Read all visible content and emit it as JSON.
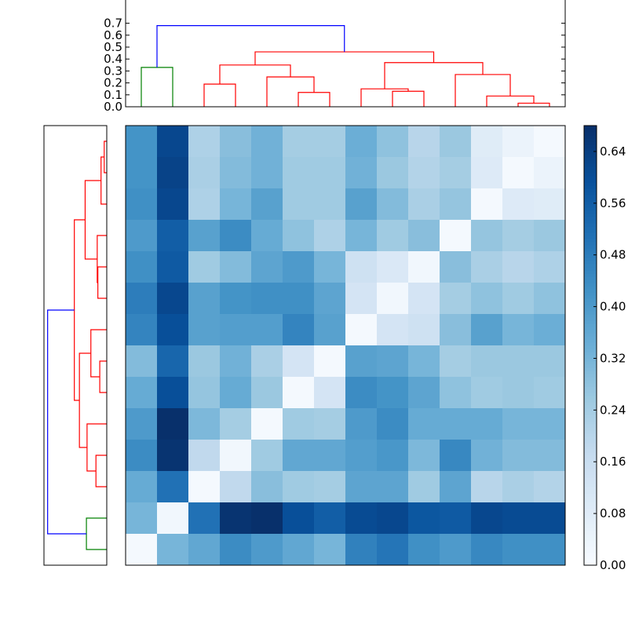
{
  "colors": {
    "cmap": [
      "#f7fbff",
      "#deebf7",
      "#c6dbef",
      "#9ecae1",
      "#6baed6",
      "#4292c6",
      "#2171b5",
      "#08519c",
      "#08306b"
    ],
    "link_blue": "#0000ff",
    "link_red": "#ff0000",
    "link_green": "#008000",
    "axis": "#000000"
  },
  "chart_data": [
    {
      "type": "heatmap",
      "title": "",
      "xlabel": "",
      "ylabel": "",
      "rows": 14,
      "cols": 14,
      "vmin": 0,
      "vmax": 0.68,
      "values": [
        [
          0.42,
          0.62,
          0.22,
          0.29,
          0.33,
          0.24,
          0.24,
          0.34,
          0.28,
          0.2,
          0.26,
          0.08,
          0.04,
          0.01
        ],
        [
          0.42,
          0.63,
          0.23,
          0.3,
          0.33,
          0.25,
          0.25,
          0.33,
          0.26,
          0.21,
          0.24,
          0.09,
          0.01,
          0.04
        ],
        [
          0.43,
          0.62,
          0.22,
          0.32,
          0.38,
          0.25,
          0.25,
          0.38,
          0.3,
          0.23,
          0.27,
          0.01,
          0.09,
          0.08
        ],
        [
          0.4,
          0.56,
          0.38,
          0.44,
          0.35,
          0.28,
          0.22,
          0.32,
          0.25,
          0.29,
          0.01,
          0.27,
          0.24,
          0.26
        ],
        [
          0.43,
          0.57,
          0.25,
          0.3,
          0.37,
          0.4,
          0.32,
          0.14,
          0.1,
          0.02,
          0.29,
          0.23,
          0.2,
          0.22
        ],
        [
          0.48,
          0.62,
          0.38,
          0.42,
          0.43,
          0.43,
          0.37,
          0.12,
          0.02,
          0.12,
          0.24,
          0.28,
          0.25,
          0.28
        ],
        [
          0.46,
          0.6,
          0.38,
          0.39,
          0.39,
          0.46,
          0.38,
          0.01,
          0.12,
          0.14,
          0.29,
          0.38,
          0.32,
          0.34
        ],
        [
          0.3,
          0.54,
          0.26,
          0.33,
          0.23,
          0.12,
          0.01,
          0.38,
          0.37,
          0.32,
          0.24,
          0.26,
          0.26,
          0.26
        ],
        [
          0.35,
          0.6,
          0.27,
          0.35,
          0.26,
          0.01,
          0.12,
          0.44,
          0.42,
          0.37,
          0.28,
          0.25,
          0.26,
          0.25
        ],
        [
          0.4,
          0.68,
          0.31,
          0.24,
          0.01,
          0.25,
          0.24,
          0.4,
          0.44,
          0.35,
          0.35,
          0.35,
          0.32,
          0.32
        ],
        [
          0.44,
          0.67,
          0.18,
          0.02,
          0.25,
          0.36,
          0.36,
          0.39,
          0.41,
          0.31,
          0.45,
          0.33,
          0.3,
          0.3
        ],
        [
          0.35,
          0.51,
          0.01,
          0.18,
          0.29,
          0.25,
          0.24,
          0.37,
          0.37,
          0.25,
          0.37,
          0.2,
          0.23,
          0.21
        ],
        [
          0.32,
          0.02,
          0.51,
          0.67,
          0.68,
          0.6,
          0.56,
          0.61,
          0.62,
          0.58,
          0.57,
          0.62,
          0.61,
          0.61
        ],
        [
          0.01,
          0.32,
          0.36,
          0.44,
          0.4,
          0.36,
          0.32,
          0.47,
          0.5,
          0.43,
          0.4,
          0.45,
          0.43,
          0.43
        ]
      ]
    },
    {
      "type": "dendrogram",
      "orientation": "top",
      "leaves": 14,
      "ylim": [
        0,
        0.7
      ],
      "yticks": [
        0.0,
        0.1,
        0.2,
        0.3,
        0.4,
        0.5,
        0.6,
        0.7
      ],
      "ytick_labels": [
        "0.0",
        "0.1",
        "0.2",
        "0.3",
        "0.4",
        "0.5",
        "0.6",
        "0.7"
      ],
      "links": [
        {
          "l": 0,
          "r": 1,
          "h": 0.33,
          "lh": 0,
          "rh": 0,
          "c": "green"
        },
        {
          "l": 2,
          "r": 3,
          "h": 0.19,
          "lh": 0,
          "rh": 0,
          "c": "red"
        },
        {
          "l": 5,
          "r": 6,
          "h": 0.12,
          "lh": 0,
          "rh": 0,
          "c": "red"
        },
        {
          "l": 4,
          "r": 5.5,
          "h": 0.25,
          "lh": 0,
          "rh": 0.12,
          "c": "red"
        },
        {
          "l": 2.5,
          "r": 4.75,
          "h": 0.35,
          "lh": 0.19,
          "rh": 0.25,
          "c": "red"
        },
        {
          "l": 8,
          "r": 9,
          "h": 0.13,
          "lh": 0,
          "rh": 0,
          "c": "red"
        },
        {
          "l": 7,
          "r": 8.5,
          "h": 0.15,
          "lh": 0,
          "rh": 0.13,
          "c": "red"
        },
        {
          "l": 12,
          "r": 13,
          "h": 0.03,
          "lh": 0,
          "rh": 0,
          "c": "red"
        },
        {
          "l": 11,
          "r": 12.5,
          "h": 0.09,
          "lh": 0,
          "rh": 0.03,
          "c": "red"
        },
        {
          "l": 10,
          "r": 11.75,
          "h": 0.27,
          "lh": 0,
          "rh": 0.09,
          "c": "red"
        },
        {
          "l": 7.75,
          "r": 10.875,
          "h": 0.37,
          "lh": 0.15,
          "rh": 0.27,
          "c": "red"
        },
        {
          "l": 3.625,
          "r": 9.3125,
          "h": 0.46,
          "lh": 0.35,
          "rh": 0.37,
          "c": "red"
        },
        {
          "l": 0.5,
          "r": 6.46875,
          "h": 0.68,
          "lh": 0.33,
          "rh": 0.46,
          "c": "blue"
        }
      ]
    },
    {
      "type": "dendrogram",
      "orientation": "left",
      "leaves": 14,
      "links": [
        {
          "l": 0,
          "r": 1,
          "h": 0.32,
          "lh": 0,
          "rh": 0,
          "c": "green"
        },
        {
          "l": 2,
          "r": 3,
          "h": 0.17,
          "lh": 0,
          "rh": 0,
          "c": "red"
        },
        {
          "l": 4,
          "r": 2.5,
          "h": 0.31,
          "lh": 0,
          "rh": 0.17,
          "c": "red"
        },
        {
          "l": 5,
          "r": 6,
          "h": 0.11,
          "lh": 0,
          "rh": 0,
          "c": "red"
        },
        {
          "l": 7,
          "r": 5.5,
          "h": 0.25,
          "lh": 0,
          "rh": 0.11,
          "c": "red"
        },
        {
          "l": 3.25,
          "r": 6.25,
          "h": 0.43,
          "lh": 0.31,
          "rh": 0.25,
          "c": "red"
        },
        {
          "l": 8,
          "r": 9,
          "h": 0.14,
          "lh": 0,
          "rh": 0,
          "c": "red"
        },
        {
          "l": 10,
          "r": 8.5,
          "h": 0.15,
          "lh": 0,
          "rh": 0.14,
          "c": "red"
        },
        {
          "l": 12,
          "r": 13,
          "h": 0.04,
          "lh": 0,
          "rh": 0,
          "c": "red"
        },
        {
          "l": 11,
          "r": 12.5,
          "h": 0.09,
          "lh": 0,
          "rh": 0.04,
          "c": "red"
        },
        {
          "l": 9.25,
          "r": 11.75,
          "h": 0.34,
          "lh": 0.15,
          "rh": 0.09,
          "c": "red"
        },
        {
          "l": 4.75,
          "r": 10.5,
          "h": 0.51,
          "lh": 0.43,
          "rh": 0.34,
          "c": "red"
        },
        {
          "l": 0.5,
          "r": 7.625,
          "h": 0.93,
          "lh": 0.32,
          "rh": 0.51,
          "c": "blue"
        }
      ]
    },
    {
      "type": "colorbar",
      "vmin": 0,
      "vmax": 0.68,
      "ticks": [
        0.0,
        0.08,
        0.16,
        0.24,
        0.32,
        0.4,
        0.48,
        0.56,
        0.64
      ],
      "tick_labels": [
        "0.00",
        "0.08",
        "0.16",
        "0.24",
        "0.32",
        "0.40",
        "0.48",
        "0.56",
        "0.64"
      ]
    }
  ]
}
